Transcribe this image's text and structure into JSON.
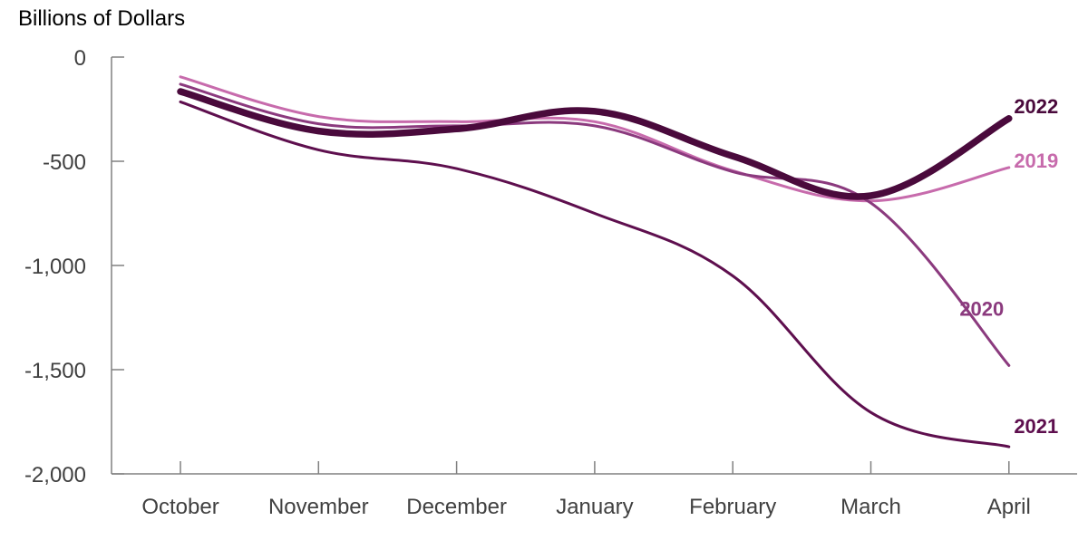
{
  "chart_data": {
    "type": "line",
    "ylabel": "Billions of Dollars",
    "xlabel": "",
    "categories": [
      "October",
      "November",
      "December",
      "January",
      "February",
      "March",
      "April"
    ],
    "ylim": [
      -2000,
      0
    ],
    "yticks": [
      0,
      -500,
      -1000,
      -1500,
      -2000
    ],
    "ytick_labels": [
      "0",
      "-500",
      "-1,000",
      "-1,500",
      "-2,000"
    ],
    "grid": false,
    "series": [
      {
        "name": "2019",
        "color": "#c76bac",
        "values": [
          -95,
          -285,
          -310,
          -310,
          -545,
          -690,
          -530
        ],
        "emphasis": false
      },
      {
        "name": "2020",
        "color": "#8b3a7e",
        "values": [
          -130,
          -320,
          -330,
          -330,
          -550,
          -700,
          -1480
        ],
        "emphasis": false
      },
      {
        "name": "2021",
        "color": "#5e0f4e",
        "values": [
          -215,
          -445,
          -535,
          -750,
          -1050,
          -1705,
          -1870
        ],
        "emphasis": false
      },
      {
        "name": "2022",
        "color": "#4a0a3c",
        "values": [
          -165,
          -355,
          -345,
          -260,
          -475,
          -665,
          -295
        ],
        "emphasis": true
      }
    ]
  }
}
